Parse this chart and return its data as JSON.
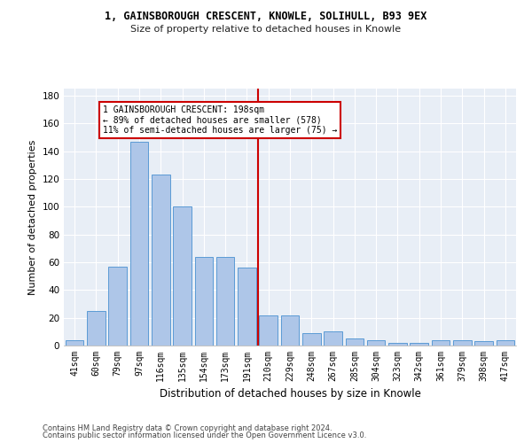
{
  "title1": "1, GAINSBOROUGH CRESCENT, KNOWLE, SOLIHULL, B93 9EX",
  "title2": "Size of property relative to detached houses in Knowle",
  "xlabel": "Distribution of detached houses by size in Knowle",
  "ylabel": "Number of detached properties",
  "categories": [
    "41sqm",
    "60sqm",
    "79sqm",
    "97sqm",
    "116sqm",
    "135sqm",
    "154sqm",
    "173sqm",
    "191sqm",
    "210sqm",
    "229sqm",
    "248sqm",
    "267sqm",
    "285sqm",
    "304sqm",
    "323sqm",
    "342sqm",
    "361sqm",
    "379sqm",
    "398sqm",
    "417sqm"
  ],
  "values": [
    4,
    25,
    57,
    147,
    123,
    100,
    64,
    64,
    56,
    22,
    22,
    9,
    10,
    5,
    4,
    2,
    2,
    4,
    4,
    3,
    4
  ],
  "bar_color": "#aec6e8",
  "bar_edge_color": "#5b9bd5",
  "vline_color": "#cc0000",
  "annotation_text": "1 GAINSBOROUGH CRESCENT: 198sqm\n← 89% of detached houses are smaller (578)\n11% of semi-detached houses are larger (75) →",
  "annotation_box_color": "#cc0000",
  "ylim": [
    0,
    185
  ],
  "yticks": [
    0,
    20,
    40,
    60,
    80,
    100,
    120,
    140,
    160,
    180
  ],
  "bg_color": "#e8eef6",
  "footer1": "Contains HM Land Registry data © Crown copyright and database right 2024.",
  "footer2": "Contains public sector information licensed under the Open Government Licence v3.0."
}
